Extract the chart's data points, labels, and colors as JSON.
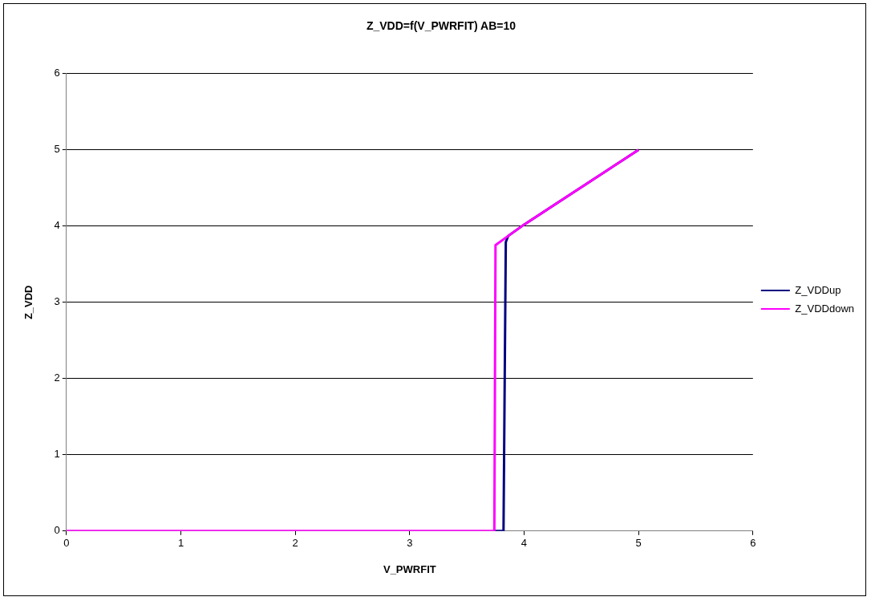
{
  "chart_data": {
    "type": "line",
    "title": "Z_VDD=f(V_PWRFIT) AB=10",
    "xlabel": "V_PWRFIT",
    "ylabel": "Z_VDD",
    "series": [
      {
        "name": "Z_VDDup",
        "color": "#000080",
        "x": [
          3.74,
          3.82,
          3.84,
          3.86,
          4,
          5
        ],
        "values": [
          0,
          0,
          3.79,
          3.87,
          4.02,
          5
        ]
      },
      {
        "name": "Z_VDDdown",
        "color": "#ff00ff",
        "x": [
          0,
          3.74,
          3.75,
          3.86,
          4,
          5
        ],
        "values": [
          0,
          0,
          3.75,
          3.87,
          4.02,
          5
        ]
      }
    ],
    "xlim": [
      0,
      6
    ],
    "xticks": [
      0,
      1,
      2,
      3,
      4,
      5,
      6
    ],
    "ylim": [
      0,
      6
    ],
    "yticks": [
      0,
      1,
      2,
      3,
      4,
      5,
      6
    ],
    "grid": "y",
    "legend": "right",
    "marker": "none",
    "line_style": "solid"
  }
}
